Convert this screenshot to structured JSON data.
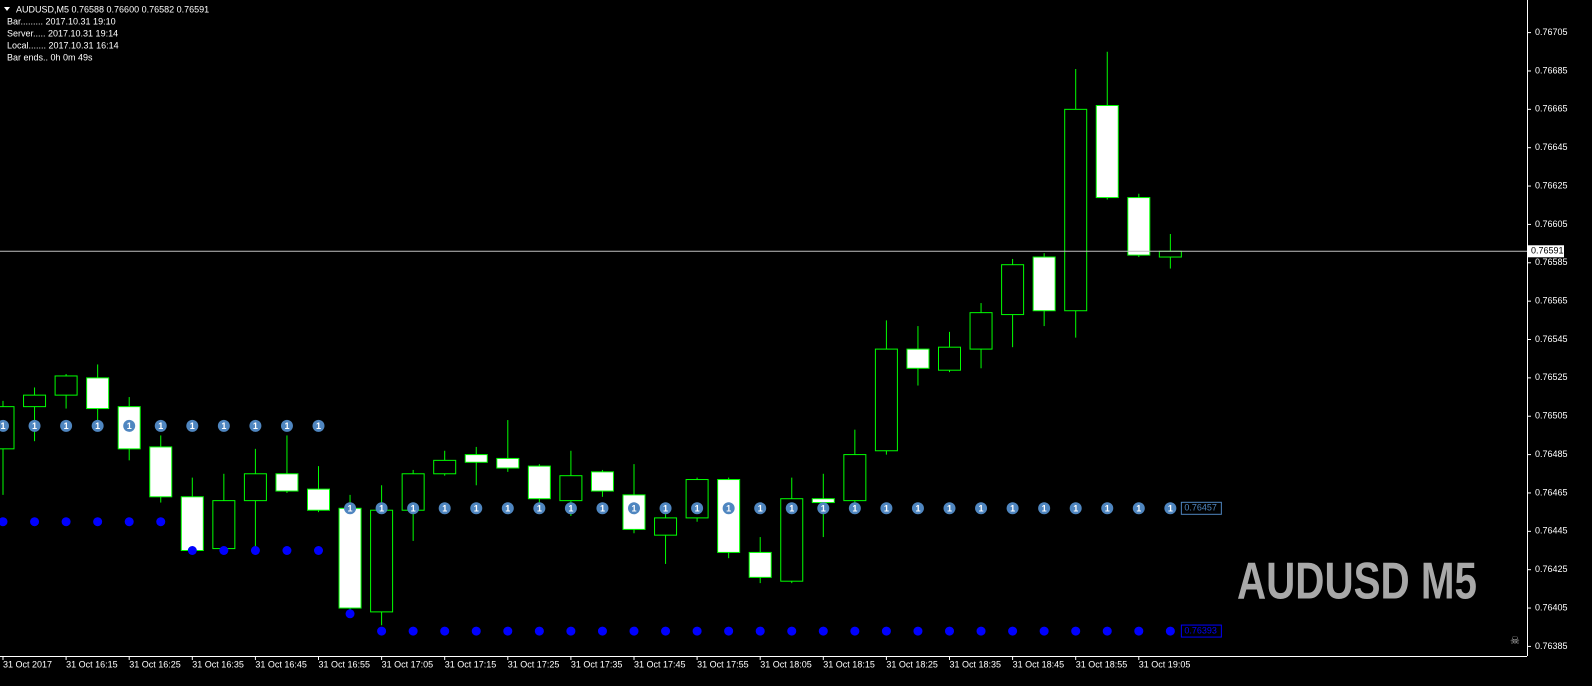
{
  "chart_data": {
    "type": "candlestick",
    "header": "AUDUSD,M5  0.76588 0.76600 0.76582 0.76591",
    "info": [
      "Bar......... 2017.10.31 19:10",
      "Server..... 2017.10.31 19:14",
      "Local....... 2017.10.31 16:14",
      "Bar ends.. 0h 0m 49s"
    ],
    "watermark": "AUDUSD M5",
    "categories": [
      "31 Oct 2017",
      null,
      "31 Oct 16:15",
      null,
      "31 Oct 16:25",
      null,
      "31 Oct 16:35",
      null,
      "31 Oct 16:45",
      null,
      "31 Oct 16:55",
      null,
      "31 Oct 17:05",
      null,
      "31 Oct 17:15",
      null,
      "31 Oct 17:25",
      null,
      "31 Oct 17:35",
      null,
      "31 Oct 17:45",
      null,
      "31 Oct 17:55",
      null,
      "31 Oct 18:05",
      null,
      "31 Oct 18:15",
      null,
      "31 Oct 18:25",
      null,
      "31 Oct 18:35",
      null,
      "31 Oct 18:45",
      null,
      "31 Oct 18:55",
      null,
      "31 Oct 19:05",
      null
    ],
    "open": [
      0.76488,
      0.7651,
      0.76516,
      0.76525,
      0.7651,
      0.76489,
      0.76463,
      0.76436,
      0.76461,
      0.76475,
      0.76467,
      0.76457,
      0.76403,
      0.76456,
      0.76475,
      0.76485,
      0.76483,
      0.76479,
      0.76461,
      0.76476,
      0.76464,
      0.76443,
      0.76452,
      0.76472,
      0.76434,
      0.76419,
      0.76462,
      0.76461,
      0.76487,
      0.7654,
      0.76529,
      0.7654,
      0.76558,
      0.76588,
      0.7656,
      0.76667,
      0.76619,
      0.76588
    ],
    "high": [
      0.76513,
      0.7652,
      0.76527,
      0.76532,
      0.76515,
      0.76495,
      0.76473,
      0.76475,
      0.76488,
      0.76495,
      0.76479,
      0.76464,
      0.76469,
      0.76477,
      0.76487,
      0.76489,
      0.76503,
      0.7648,
      0.76487,
      0.76477,
      0.7648,
      0.76454,
      0.76473,
      0.76473,
      0.76442,
      0.76473,
      0.76475,
      0.76498,
      0.76555,
      0.76552,
      0.76549,
      0.76564,
      0.76587,
      0.7659,
      0.76686,
      0.76695,
      0.76621,
      0.766
    ],
    "low": [
      0.76464,
      0.76492,
      0.76509,
      0.76503,
      0.76482,
      0.7646,
      0.76434,
      0.76435,
      0.76436,
      0.76465,
      0.76455,
      0.76403,
      0.76396,
      0.7644,
      0.76474,
      0.76469,
      0.76476,
      0.76455,
      0.76453,
      0.76463,
      0.76444,
      0.76428,
      0.7645,
      0.76431,
      0.76418,
      0.76418,
      0.76442,
      0.76459,
      0.76485,
      0.76521,
      0.76528,
      0.7653,
      0.76541,
      0.76552,
      0.76546,
      0.76618,
      0.76588,
      0.76582
    ],
    "close": [
      0.7651,
      0.76516,
      0.76526,
      0.76509,
      0.76488,
      0.76463,
      0.76435,
      0.76461,
      0.76475,
      0.76466,
      0.76456,
      0.76405,
      0.76456,
      0.76475,
      0.76482,
      0.76481,
      0.76478,
      0.76462,
      0.76474,
      0.76466,
      0.76446,
      0.76452,
      0.76472,
      0.76434,
      0.76421,
      0.76462,
      0.7646,
      0.76485,
      0.7654,
      0.7653,
      0.76541,
      0.76559,
      0.76584,
      0.7656,
      0.76665,
      0.76619,
      0.76589,
      0.76591
    ],
    "upper": [
      0.765,
      0.765,
      0.765,
      0.765,
      0.765,
      0.765,
      0.765,
      0.765,
      0.765,
      0.765,
      0.765,
      0.76457,
      0.76457,
      0.76457,
      0.76457,
      0.76457,
      0.76457,
      0.76457,
      0.76457,
      0.76457,
      0.76457,
      0.76457,
      0.76457,
      0.76457,
      0.76457,
      0.76457,
      0.76457,
      0.76457,
      0.76457,
      0.76457,
      0.76457,
      0.76457,
      0.76457,
      0.76457,
      0.76457,
      0.76457,
      0.76457,
      0.76457
    ],
    "upper_marker": "1",
    "lower": [
      0.7645,
      0.7645,
      0.7645,
      0.7645,
      0.7645,
      0.7645,
      0.76435,
      0.76435,
      0.76435,
      0.76435,
      0.76435,
      0.76402,
      0.76393,
      0.76393,
      0.76393,
      0.76393,
      0.76393,
      0.76393,
      0.76393,
      0.76393,
      0.76393,
      0.76393,
      0.76393,
      0.76393,
      0.76393,
      0.76393,
      0.76393,
      0.76393,
      0.76393,
      0.76393,
      0.76393,
      0.76393,
      0.76393,
      0.76393,
      0.76393,
      0.76393,
      0.76393,
      0.76393
    ],
    "ylim": [
      0.7638,
      0.76722
    ],
    "yticks": [
      0.76705,
      0.76685,
      0.76665,
      0.76645,
      0.76625,
      0.76605,
      0.76585,
      0.76565,
      0.76545,
      0.76525,
      0.76505,
      0.76485,
      0.76465,
      0.76445,
      0.76425,
      0.76405,
      0.76385
    ],
    "up_color": "#000000",
    "down_color": "#ffffff",
    "wick_color": "#00ff00",
    "upper_color": "#4f86c0",
    "lower_color": "#0000ff",
    "price_line_color": "#c0c0c0"
  }
}
